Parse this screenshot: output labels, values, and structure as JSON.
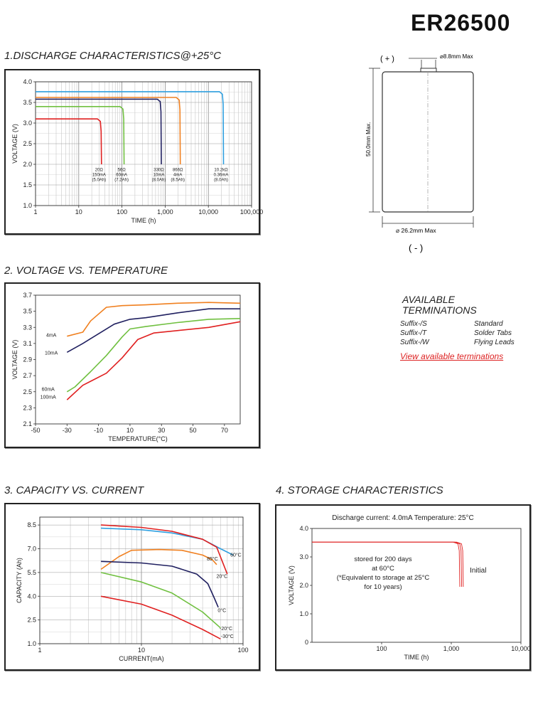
{
  "page": {
    "title": "ER26500",
    "sections": {
      "s1": "1.DISCHARGE CHARACTERISTICS@+25°C",
      "s2": "2. VOLTAGE VS. TEMPERATURE",
      "s3": "3. CAPACITY VS. CURRENT",
      "s4": "4. STORAGE CHARACTERISTICS"
    },
    "dimension_drawing": {
      "plus_label": "( + )",
      "minus_label": "( - )",
      "terminal_dim": "⌀8.8mm Max",
      "height_dim": "50.0mm Max.",
      "diameter_dim": "⌀ 26.2mm Max"
    },
    "terminations": {
      "heading_1": "AVAILABLE",
      "heading_2": "TERMINATIONS",
      "items": [
        {
          "suffix": "Suffix-/S",
          "type": "Standard"
        },
        {
          "suffix": "Suffix-/T",
          "type": "Solder Tabs"
        },
        {
          "suffix": "Suffix-/W",
          "type": "Flying Leads"
        }
      ],
      "link": "View available terminations"
    }
  },
  "chart_data": [
    {
      "id": "discharge",
      "type": "line",
      "xscale": "log",
      "xlabel": "TIME (h)",
      "ylabel": "VOLTAGE (V)",
      "xlim": [
        1,
        100000
      ],
      "ylim": [
        1.0,
        4.0
      ],
      "xticks": [
        "1",
        "10",
        "100",
        "1,000",
        "10,000",
        "100,000"
      ],
      "yticks": [
        "1.0",
        "1.5",
        "2.0",
        "2.5",
        "3.0",
        "3.5",
        "4.0"
      ],
      "grid": true,
      "series": [
        {
          "label": [
            "20Ω",
            "150mA",
            "(5.0Ah)"
          ],
          "color": "#e02020",
          "plateau": 3.1,
          "end": 33
        },
        {
          "label": [
            "56Ω",
            "60mA",
            "(7.2Ah)"
          ],
          "color": "#70c040",
          "plateau": 3.4,
          "end": 110
        },
        {
          "label": [
            "330Ω",
            "10mA",
            "(8.0Ah)"
          ],
          "color": "#202060",
          "plateau": 3.58,
          "end": 800
        },
        {
          "label": [
            "866Ω",
            "4mA",
            "(8.5Ah)"
          ],
          "color": "#f08020",
          "plateau": 3.62,
          "end": 2200
        },
        {
          "label": [
            "10.2kΩ",
            "0.36mA",
            "(8.0Ah)"
          ],
          "color": "#30a0e0",
          "plateau": 3.76,
          "end": 22000
        }
      ]
    },
    {
      "id": "voltage_temp",
      "type": "line",
      "xlabel": "TEMPERATURE(°C)",
      "ylabel": "VOLTAGE (V)",
      "xlim": [
        -50,
        80
      ],
      "ylim": [
        2.1,
        3.7
      ],
      "xticks": [
        "-50",
        "-30",
        "-10",
        "10",
        "30",
        "50",
        "70"
      ],
      "yticks": [
        "2.1",
        "2.3",
        "2.5",
        "2.7",
        "2.9",
        "3.1",
        "3.3",
        "3.5",
        "3.7"
      ],
      "grid": false,
      "series": [
        {
          "label": "4mA",
          "color": "#f08020",
          "x": [
            -30,
            -20,
            -15,
            -5,
            5,
            20,
            40,
            60,
            80
          ],
          "y": [
            3.19,
            3.24,
            3.38,
            3.55,
            3.57,
            3.58,
            3.6,
            3.61,
            3.6
          ]
        },
        {
          "label": "10mA",
          "color": "#202060",
          "x": [
            -30,
            -20,
            -10,
            0,
            10,
            20,
            40,
            60,
            80
          ],
          "y": [
            2.99,
            3.1,
            3.22,
            3.34,
            3.4,
            3.42,
            3.48,
            3.53,
            3.53
          ]
        },
        {
          "label": "60mA",
          "color": "#70c040",
          "x": [
            -30,
            -25,
            -15,
            -5,
            5,
            10,
            20,
            40,
            60,
            80
          ],
          "y": [
            2.5,
            2.56,
            2.75,
            2.95,
            3.18,
            3.28,
            3.31,
            3.36,
            3.4,
            3.41
          ]
        },
        {
          "label": "100mA",
          "color": "#e02020",
          "x": [
            -30,
            -20,
            -5,
            5,
            15,
            25,
            40,
            60,
            80
          ],
          "y": [
            2.4,
            2.58,
            2.73,
            2.92,
            3.15,
            3.23,
            3.26,
            3.3,
            3.37
          ]
        }
      ]
    },
    {
      "id": "capacity_current",
      "type": "line",
      "xscale": "log",
      "xlabel": "CURRENT(mA)",
      "ylabel": "CAPACITY (Ah)",
      "xlim": [
        1,
        100
      ],
      "ylim": [
        1.0,
        9.0
      ],
      "xticks": [
        "1",
        "10",
        "100"
      ],
      "yticks": [
        "1.0",
        "2.5",
        "4.0",
        "5.5",
        "7.0",
        "8.5"
      ],
      "grid": true,
      "series": [
        {
          "label": "60°C",
          "color": "#30a0e0",
          "x": [
            4,
            10,
            20,
            40,
            60,
            80
          ],
          "y": [
            8.3,
            8.2,
            8.0,
            7.6,
            7.0,
            6.6
          ]
        },
        {
          "label": "20°C",
          "color": "#e02020",
          "x": [
            4,
            10,
            20,
            40,
            55,
            70
          ],
          "y": [
            8.5,
            8.35,
            8.1,
            7.6,
            7.1,
            5.4
          ]
        },
        {
          "label": "85°C",
          "color": "#f08020",
          "x": [
            4,
            6,
            8,
            15,
            25,
            40,
            50,
            55
          ],
          "y": [
            5.7,
            6.5,
            6.9,
            6.95,
            6.9,
            6.6,
            6.3,
            6.0
          ]
        },
        {
          "label": "0°C",
          "color": "#202060",
          "x": [
            4,
            10,
            20,
            35,
            45,
            52,
            57
          ],
          "y": [
            6.2,
            6.1,
            5.9,
            5.4,
            4.8,
            3.9,
            3.3
          ]
        },
        {
          "label": "-20°C",
          "color": "#70c040",
          "x": [
            4,
            10,
            20,
            40,
            60
          ],
          "y": [
            5.5,
            4.9,
            4.2,
            3.0,
            2.0
          ]
        },
        {
          "label": "-30°C",
          "color": "#e02020",
          "x": [
            4,
            10,
            20,
            40,
            60
          ],
          "y": [
            4.0,
            3.5,
            2.8,
            1.9,
            1.3
          ]
        }
      ]
    },
    {
      "id": "storage",
      "type": "line",
      "xscale": "log",
      "title": "Discharge current: 4.0mA  Temperature:  25°C",
      "xlabel": "TIME (h)",
      "ylabel": "VOLTAGE (V)",
      "xlim": [
        10,
        10000
      ],
      "ylim": [
        0,
        4.0
      ],
      "xticks": [
        "100",
        "1,000",
        "10,000"
      ],
      "yticks": [
        "0",
        "1.0",
        "2.0",
        "3.0",
        "4.0"
      ],
      "grid": false,
      "annotation": [
        "stored for 200 days",
        "at 60°C",
        "(*Equivalent to storage at 25°C",
        "for 10 years)"
      ],
      "series": [
        {
          "label": "",
          "color": "#e02020",
          "plateau": 3.52,
          "end": 1300
        },
        {
          "label": "",
          "color": "#e02020",
          "plateau": 3.52,
          "end": 1380
        },
        {
          "label": "Initial",
          "color": "#e02020",
          "plateau": 3.52,
          "end": 1460
        }
      ]
    }
  ]
}
